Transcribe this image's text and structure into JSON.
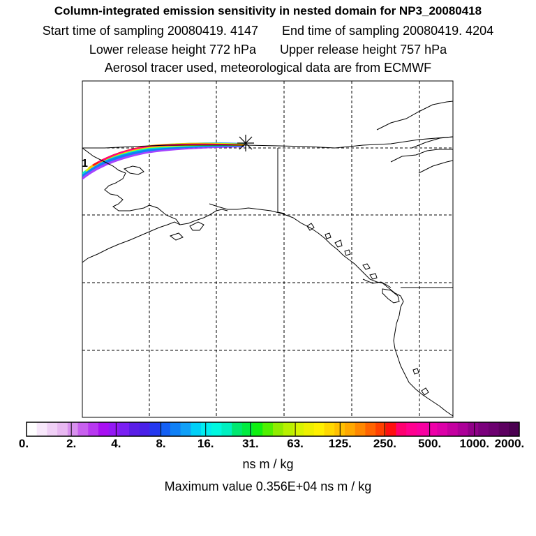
{
  "header": {
    "title": "Column-integrated emission sensitivity in nested domain for NP3_20080418",
    "start_label": "Start time of sampling 20080419.  4147",
    "end_label": "End time of sampling 20080419.  4204",
    "lower_label": "Lower release height  772 hPa",
    "upper_label": "Upper release height  757 hPa",
    "subtitle": "Aerosol tracer used, meteorological data are from ECMWF"
  },
  "map": {
    "release_marker": "asterisk",
    "plume_label": "1",
    "grid": "dashed"
  },
  "legend": {
    "tick_labels": [
      "0.",
      "2.",
      "4.",
      "8.",
      "16.",
      "31.",
      "63.",
      "125.",
      "250.",
      "500.",
      "1000.",
      "2000."
    ],
    "colors": [
      "#ffffff",
      "#f8e8fb",
      "#f0d0f6",
      "#e8b8f1",
      "#d890ee",
      "#c860ee",
      "#b838f0",
      "#a810f2",
      "#9418f4",
      "#7a20f2",
      "#5a1ee6",
      "#4a20e8",
      "#2438f0",
      "#1460f4",
      "#1080f6",
      "#10a0f8",
      "#00d0f8",
      "#00ecf0",
      "#00f8e0",
      "#00f0c0",
      "#00e870",
      "#00ec40",
      "#10f010",
      "#50f000",
      "#90ec00",
      "#b8f000",
      "#d8f400",
      "#eef000",
      "#fff000",
      "#ffd800",
      "#ffc000",
      "#ffa800",
      "#ff8800",
      "#ff6400",
      "#ff4000",
      "#ff1010",
      "#ff0070",
      "#ff0090",
      "#f800a0",
      "#ee00a8",
      "#dc00a8",
      "#c400a0",
      "#ac0098",
      "#900088",
      "#7a007c",
      "#6c0070",
      "#5c0060",
      "#4a0050"
    ],
    "units": "ns m / kg",
    "max_value": "Maximum value  0.356E+04 ns m / kg"
  }
}
